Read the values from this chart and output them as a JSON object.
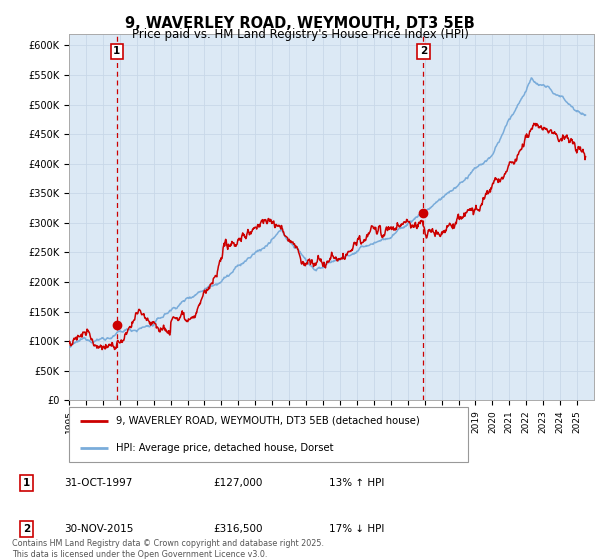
{
  "title": "9, WAVERLEY ROAD, WEYMOUTH, DT3 5EB",
  "subtitle": "Price paid vs. HM Land Registry's House Price Index (HPI)",
  "ylabel_ticks": [
    "£0",
    "£50K",
    "£100K",
    "£150K",
    "£200K",
    "£250K",
    "£300K",
    "£350K",
    "£400K",
    "£450K",
    "£500K",
    "£550K",
    "£600K"
  ],
  "ytick_values": [
    0,
    50000,
    100000,
    150000,
    200000,
    250000,
    300000,
    350000,
    400000,
    450000,
    500000,
    550000,
    600000
  ],
  "ylim": [
    0,
    620000
  ],
  "sale1_date": 1997.83,
  "sale1_price": 127000,
  "sale1_label": "1",
  "sale2_date": 2015.92,
  "sale2_price": 316500,
  "sale2_label": "2",
  "legend_line1": "9, WAVERLEY ROAD, WEYMOUTH, DT3 5EB (detached house)",
  "legend_line2": "HPI: Average price, detached house, Dorset",
  "red_color": "#cc0000",
  "blue_color": "#7aacda",
  "background_color": "#dce9f5",
  "plot_bg": "#ffffff",
  "grid_color": "#c8d8e8",
  "xmin": 1995,
  "xmax": 2026,
  "footer": "Contains HM Land Registry data © Crown copyright and database right 2025.\nThis data is licensed under the Open Government Licence v3.0."
}
